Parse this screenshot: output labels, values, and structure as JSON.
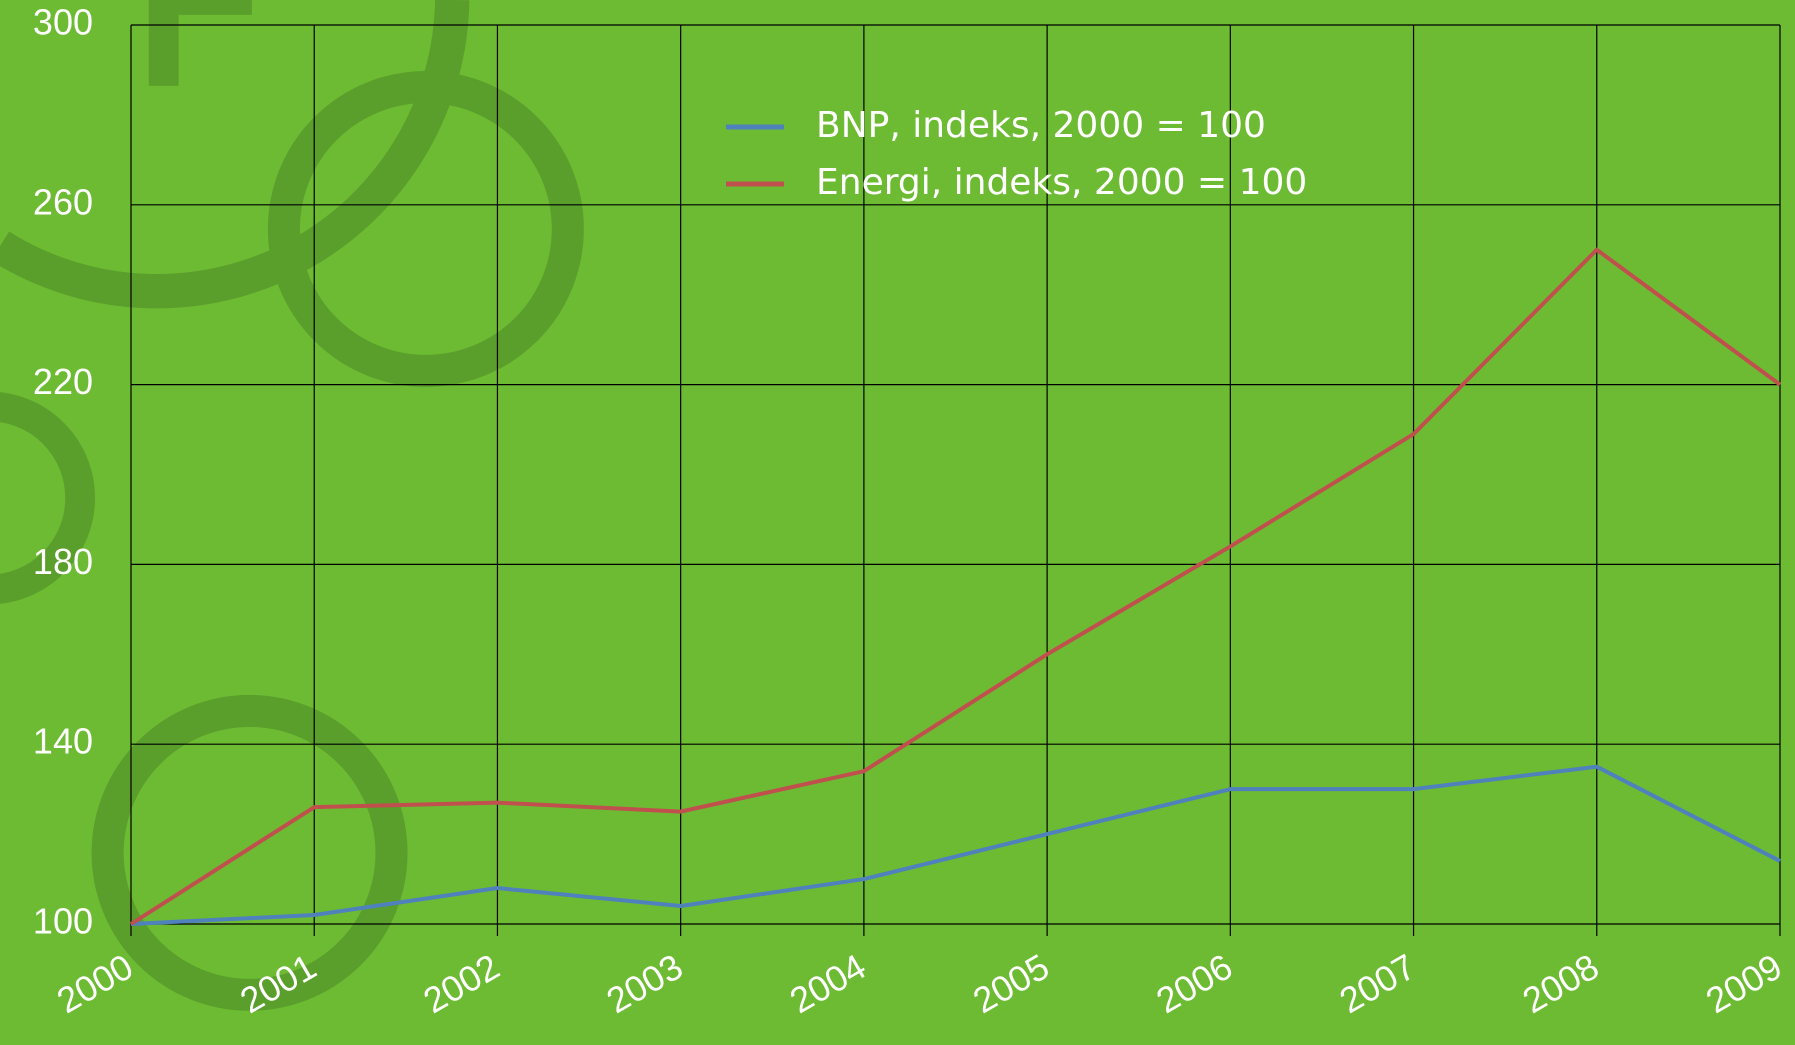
{
  "chart_data": {
    "type": "line",
    "x": [
      2000,
      2001,
      2002,
      2003,
      2004,
      2005,
      2006,
      2007,
      2008,
      2009
    ],
    "xlim": [
      2000,
      2009
    ],
    "xticks": [
      2000,
      2001,
      2002,
      2003,
      2004,
      2005,
      2006,
      2007,
      2008,
      2009
    ],
    "ylim": [
      100,
      300
    ],
    "yticks": [
      100,
      140,
      180,
      220,
      260,
      300
    ],
    "grid": true,
    "legend": "top",
    "series": [
      {
        "name": "BNP, indeks, 2000 = 100",
        "color": "#4f81bd",
        "values": [
          100,
          102,
          108,
          104,
          110,
          120,
          130,
          130,
          135,
          114
        ]
      },
      {
        "name": "Energi, indeks, 2000 = 100",
        "color": "#c0504d",
        "values": [
          100,
          126,
          127,
          125,
          134,
          160,
          184,
          209,
          250,
          220
        ]
      }
    ]
  }
}
